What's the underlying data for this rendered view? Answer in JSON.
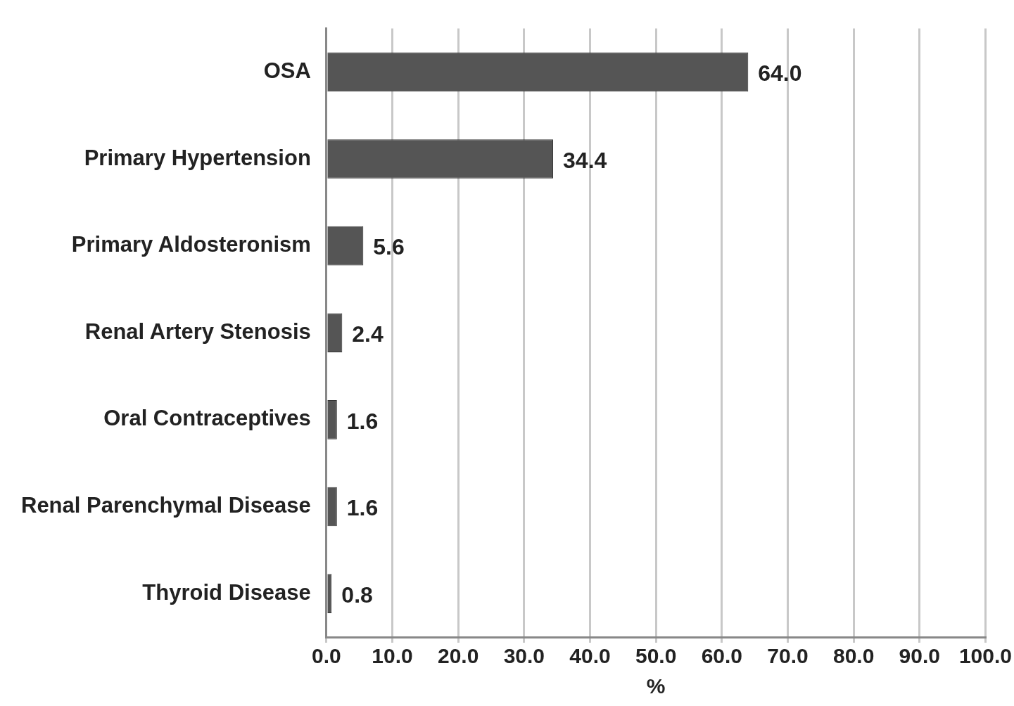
{
  "chart_data": {
    "type": "bar",
    "orientation": "horizontal",
    "categories": [
      "OSA",
      "Primary Hypertension",
      "Primary Aldosteronism",
      "Renal Artery Stenosis",
      "Oral Contraceptives",
      "Renal Parenchymal Disease",
      "Thyroid Disease"
    ],
    "values": [
      64.0,
      34.4,
      5.6,
      2.4,
      1.6,
      1.6,
      0.8
    ],
    "value_labels": [
      "64.0",
      "34.4",
      "5.6",
      "2.4",
      "1.6",
      "1.6",
      "0.8"
    ],
    "color": "#555555",
    "xlim": [
      0,
      100
    ],
    "xticks": [
      {
        "value": 0,
        "label": "0.0"
      },
      {
        "value": 10,
        "label": "10.0"
      },
      {
        "value": 20,
        "label": "20.0"
      },
      {
        "value": 30,
        "label": "30.0"
      },
      {
        "value": 40,
        "label": "40.0"
      },
      {
        "value": 50,
        "label": "50.0"
      },
      {
        "value": 60,
        "label": "60.0"
      },
      {
        "value": 70,
        "label": "70.0"
      },
      {
        "value": 80,
        "label": "80.0"
      },
      {
        "value": 90,
        "label": "90.0"
      },
      {
        "value": 100,
        "label": "100.0"
      }
    ],
    "xlabel": "%",
    "grid": "x",
    "legend": false
  }
}
